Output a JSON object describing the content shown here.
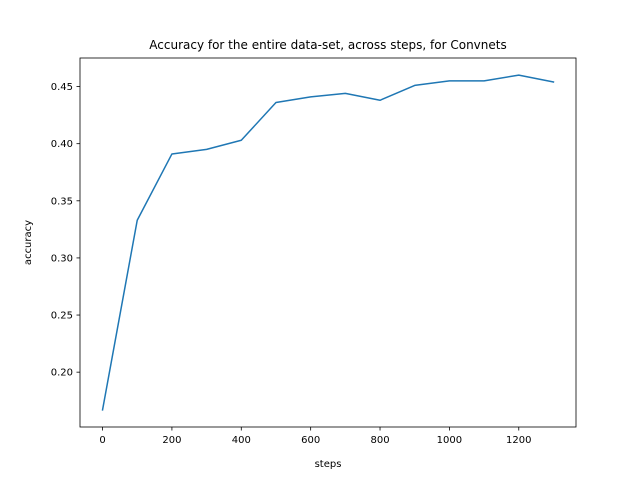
{
  "chart_data": {
    "type": "line",
    "title": "Accuracy for the entire data-set, across steps, for Convnets",
    "xlabel": "steps",
    "ylabel": "accuracy",
    "xlim": [
      -65,
      1365
    ],
    "ylim": [
      0.152,
      0.475
    ],
    "xticks": [
      0,
      200,
      400,
      600,
      800,
      1000,
      1200
    ],
    "yticks": [
      0.2,
      0.25,
      0.3,
      0.35,
      0.4,
      0.45
    ],
    "xtick_labels": [
      "0",
      "200",
      "400",
      "600",
      "800",
      "1000",
      "1200"
    ],
    "ytick_labels": [
      "0.20",
      "0.25",
      "0.30",
      "0.35",
      "0.40",
      "0.45"
    ],
    "grid": false,
    "series": [
      {
        "color": "#1f77b4",
        "x": [
          0,
          100,
          200,
          300,
          400,
          500,
          600,
          700,
          800,
          900,
          1000,
          1100,
          1200,
          1300
        ],
        "y": [
          0.167,
          0.333,
          0.391,
          0.395,
          0.403,
          0.436,
          0.441,
          0.444,
          0.438,
          0.451,
          0.455,
          0.455,
          0.46,
          0.454
        ]
      }
    ]
  }
}
